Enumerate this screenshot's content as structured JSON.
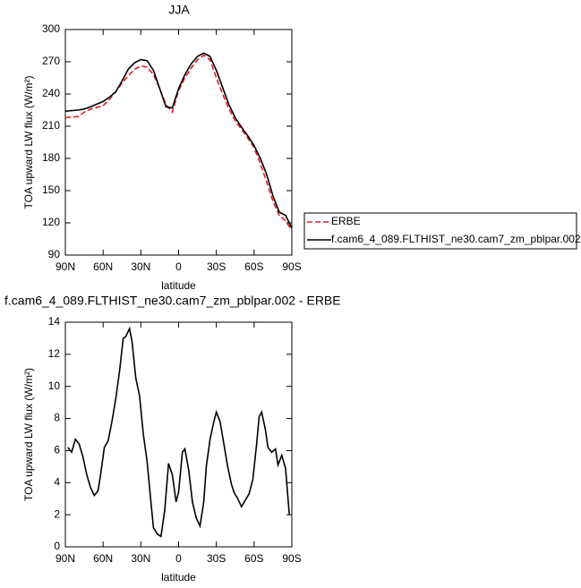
{
  "chart_data": [
    {
      "type": "line",
      "title": "JJA",
      "xlabel": "latitude",
      "ylabel": "TOA upward LW flux (W/m²)",
      "xlim": [
        90,
        -90
      ],
      "xticks": [
        {
          "value": 90,
          "label": "90N"
        },
        {
          "value": 60,
          "label": "60N"
        },
        {
          "value": 30,
          "label": "30N"
        },
        0,
        {
          "value": -30,
          "label": "30S"
        },
        {
          "value": -60,
          "label": "60S"
        },
        {
          "value": -90,
          "label": "90S"
        }
      ],
      "ylim": [
        90,
        300
      ],
      "yticks": [
        90,
        120,
        150,
        180,
        210,
        240,
        270,
        300
      ],
      "legend": "outside-right",
      "x": [
        90,
        80,
        75,
        70,
        60,
        55,
        50,
        45,
        40,
        35,
        30,
        25,
        20,
        15,
        10,
        5,
        0,
        -5,
        -10,
        -15,
        -20,
        -25,
        -30,
        -35,
        -40,
        -45,
        -50,
        -55,
        -60,
        -65,
        -70,
        -75,
        -80,
        -85,
        -90
      ],
      "series": [
        {
          "name": "ERBE",
          "color": "#e41a1c",
          "dashed": true,
          "values": [
            218,
            219,
            223,
            226,
            229,
            235,
            242,
            250,
            257,
            263,
            266,
            265,
            258,
            245,
            230,
            223,
            243,
            255,
            264,
            272,
            276,
            272,
            255,
            240,
            226,
            215,
            207,
            199,
            190,
            175,
            158,
            140,
            127,
            122,
            113
          ]
        },
        {
          "name": "f.cam6_4_089.FLTHIST_ne30.cam7_zm_pblpar.002",
          "color": "#000000",
          "dashed": false,
          "values": [
            224,
            225,
            226,
            228,
            233,
            237,
            242,
            252,
            263,
            269,
            272,
            271,
            262,
            245,
            228,
            227,
            245,
            258,
            268,
            275,
            278,
            275,
            262,
            246,
            230,
            218,
            209,
            201,
            192,
            180,
            165,
            145,
            130,
            127,
            115
          ]
        }
      ]
    },
    {
      "type": "line",
      "title": "f.cam6_4_089.FLTHIST_ne30.cam7_zm_pblpar.002 - ERBE",
      "xlabel": "latitude",
      "ylabel": "TOA upward LW flux (W/m²)",
      "xlim": [
        90,
        -90
      ],
      "xticks": [
        {
          "value": 90,
          "label": "90N"
        },
        {
          "value": 60,
          "label": "60N"
        },
        {
          "value": 30,
          "label": "30N"
        },
        0,
        {
          "value": -30,
          "label": "30S"
        },
        {
          "value": -60,
          "label": "60S"
        },
        {
          "value": -90,
          "label": "90S"
        }
      ],
      "ylim": [
        0,
        14
      ],
      "yticks": [
        0,
        2,
        4,
        6,
        8,
        10,
        12,
        14
      ],
      "color": "#000000",
      "x": [
        88,
        85,
        82,
        79,
        76,
        73,
        70,
        67,
        64,
        62,
        59,
        56,
        53,
        50,
        47,
        44,
        42,
        39,
        37,
        34,
        31,
        28,
        25,
        22,
        20,
        17,
        14,
        11,
        8,
        5,
        2,
        0,
        -3,
        -5,
        -8,
        -11,
        -14,
        -17,
        -20,
        -22,
        -25,
        -28,
        -30,
        -33,
        -36,
        -39,
        -42,
        -44,
        -47,
        -50,
        -53,
        -56,
        -59,
        -62,
        -64,
        -66,
        -69,
        -71,
        -74,
        -77,
        -79,
        -82,
        -85,
        -88
      ],
      "values": [
        6.2,
        5.9,
        6.7,
        6.4,
        5.6,
        4.5,
        3.7,
        3.2,
        3.5,
        4.5,
        6.2,
        6.6,
        7.8,
        9.2,
        10.9,
        13.0,
        13.1,
        13.6,
        12.8,
        10.5,
        9.4,
        7.0,
        5.3,
        2.8,
        1.2,
        0.8,
        0.65,
        2.3,
        5.2,
        4.5,
        2.8,
        3.4,
        5.9,
        6.1,
        4.8,
        2.8,
        1.8,
        1.3,
        2.8,
        5.0,
        6.7,
        7.8,
        8.4,
        7.8,
        6.4,
        5.0,
        3.9,
        3.4,
        3.0,
        2.5,
        2.9,
        3.3,
        4.2,
        6.4,
        8.1,
        8.4,
        7.3,
        6.2,
        5.9,
        6.1,
        5.1,
        5.7,
        4.9,
        2.0
      ]
    }
  ]
}
